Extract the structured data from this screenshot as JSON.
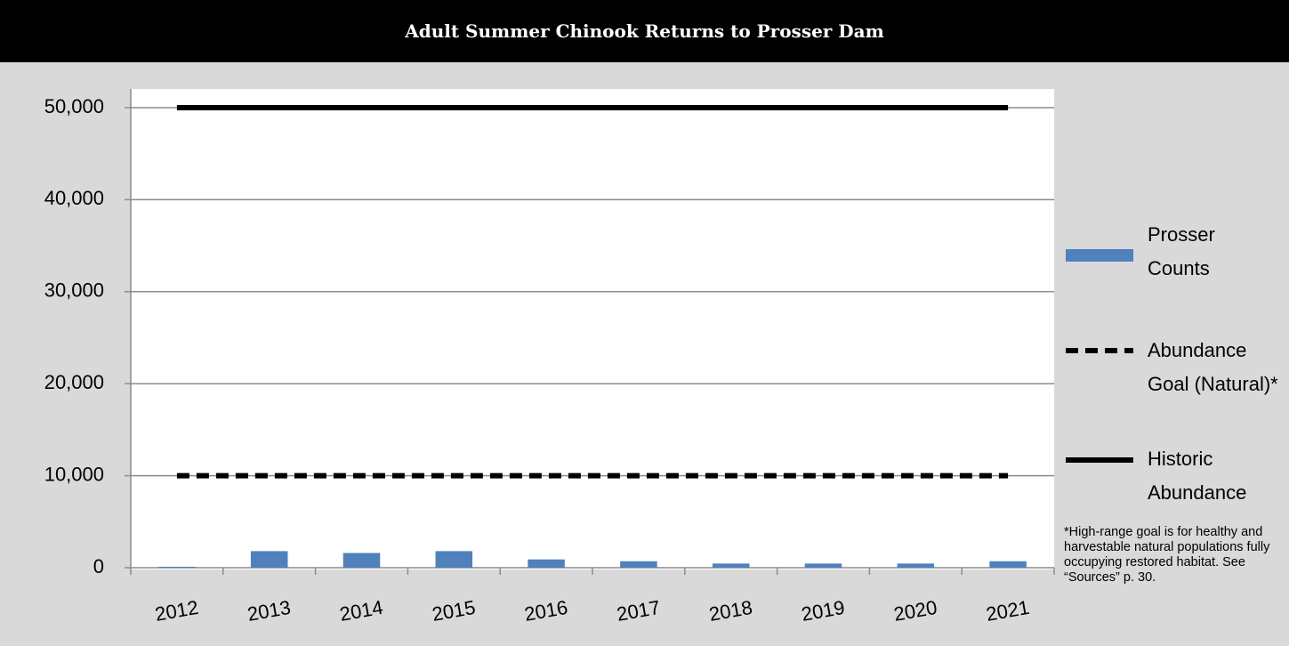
{
  "chart_data": {
    "type": "bar",
    "title": "Adult Summer Chinook Returns to Prosser Dam",
    "categories": [
      "2012",
      "2013",
      "2014",
      "2015",
      "2016",
      "2017",
      "2018",
      "2019",
      "2020",
      "2021"
    ],
    "series": [
      {
        "name": "Prosser Counts",
        "type": "bar",
        "color": "#4f81bd",
        "values": [
          100,
          1800,
          1600,
          1800,
          900,
          700,
          450,
          450,
          450,
          700
        ]
      },
      {
        "name": "Abundance Goal (Natural)*",
        "type": "line",
        "dash": true,
        "color": "#000000",
        "values": [
          10000,
          10000,
          10000,
          10000,
          10000,
          10000,
          10000,
          10000,
          10000,
          10000
        ]
      },
      {
        "name": "Historic Abundance",
        "type": "line",
        "dash": false,
        "color": "#000000",
        "values": [
          50000,
          50000,
          50000,
          50000,
          50000,
          50000,
          50000,
          50000,
          50000,
          50000
        ]
      }
    ],
    "ylim": [
      0,
      50000
    ],
    "yticks": [
      0,
      {
        "value": 10000,
        "label": "10,000"
      },
      {
        "value": 20000,
        "label": "20,000"
      },
      {
        "value": 30000,
        "label": "30,000"
      },
      {
        "value": 40000,
        "label": "40,000"
      },
      {
        "value": 50000,
        "label": "50,000"
      }
    ],
    "grid": true,
    "legend": "right",
    "footnote": "*High-range goal is for healthy and harvestable natural populations fully occupying restored habitat. See “Sources” p. 30."
  }
}
